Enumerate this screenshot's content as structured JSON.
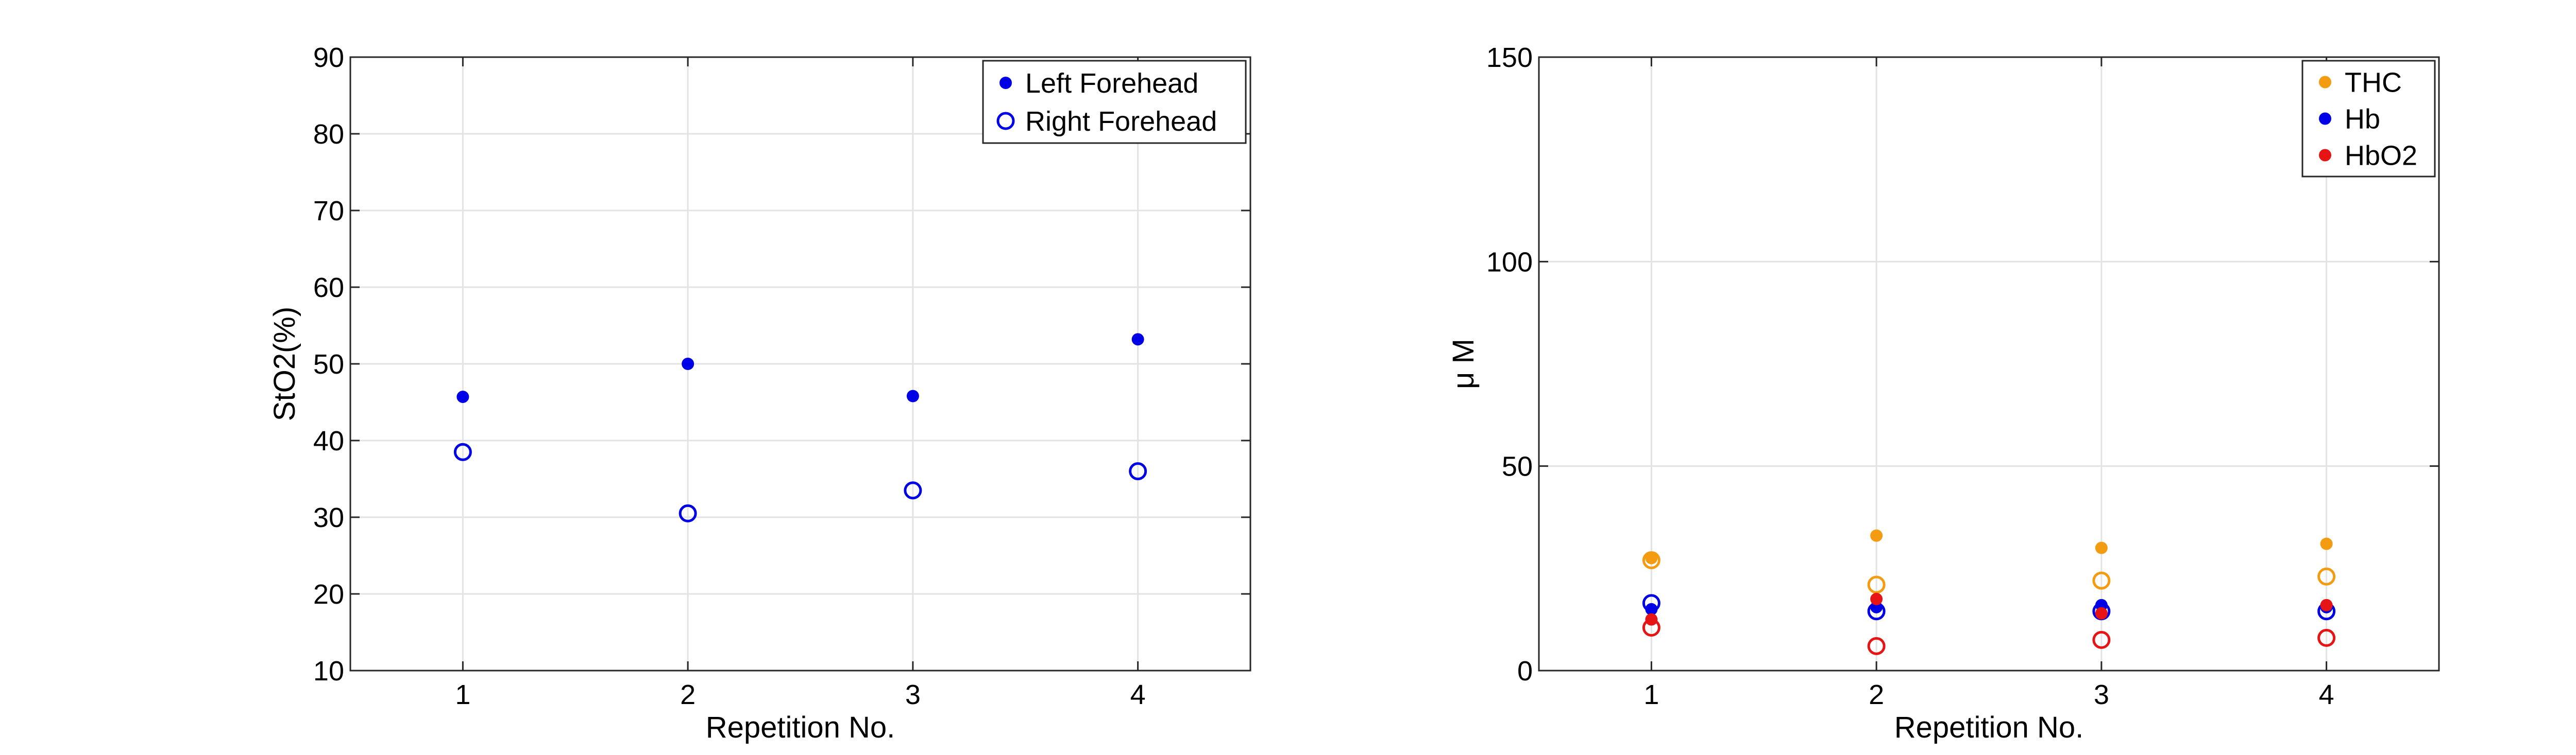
{
  "chart_data": [
    {
      "type": "scatter",
      "xlabel": "Repetition No.",
      "ylabel": "StO2(%)",
      "xlim": [
        0.5,
        4.5
      ],
      "ylim": [
        10,
        90
      ],
      "x_ticks": [
        1,
        2,
        3,
        4
      ],
      "y_ticks": [
        10,
        20,
        30,
        40,
        50,
        60,
        70,
        80,
        90
      ],
      "grid": true,
      "legend_position": "top-right",
      "series": [
        {
          "name": "Left Forehead",
          "marker": "filled",
          "color": "#0000e6",
          "points": [
            {
              "x": 1,
              "y": 45.7
            },
            {
              "x": 2,
              "y": 50.0
            },
            {
              "x": 3,
              "y": 45.8
            },
            {
              "x": 4,
              "y": 53.2
            }
          ]
        },
        {
          "name": "Right Forehead",
          "marker": "open",
          "color": "#0000e6",
          "points": [
            {
              "x": 1,
              "y": 38.5
            },
            {
              "x": 2,
              "y": 30.5
            },
            {
              "x": 3,
              "y": 33.5
            },
            {
              "x": 4,
              "y": 36.0
            }
          ]
        }
      ]
    },
    {
      "type": "scatter",
      "xlabel": "Repetition No.",
      "ylabel": "μ M",
      "xlim": [
        0.5,
        4.5
      ],
      "ylim": [
        0,
        150
      ],
      "x_ticks": [
        1,
        2,
        3,
        4
      ],
      "y_ticks": [
        0,
        50,
        100,
        150
      ],
      "grid": true,
      "legend_position": "top-right",
      "legend": [
        {
          "name": "THC",
          "color": "#f39c12"
        },
        {
          "name": "Hb",
          "color": "#0000e6"
        },
        {
          "name": "HbO2",
          "color": "#e61414"
        }
      ],
      "series": [
        {
          "color": "#f39c12",
          "marker": "filled",
          "points": [
            {
              "x": 1,
              "y": 27.5
            },
            {
              "x": 2,
              "y": 33.0
            },
            {
              "x": 3,
              "y": 30.0
            },
            {
              "x": 4,
              "y": 31.0
            }
          ]
        },
        {
          "color": "#f39c12",
          "marker": "open",
          "points": [
            {
              "x": 1,
              "y": 27.0
            },
            {
              "x": 2,
              "y": 21.0
            },
            {
              "x": 3,
              "y": 22.0
            },
            {
              "x": 4,
              "y": 23.0
            }
          ]
        },
        {
          "color": "#0000e6",
          "marker": "filled",
          "points": [
            {
              "x": 1,
              "y": 15.0
            },
            {
              "x": 2,
              "y": 15.5
            },
            {
              "x": 3,
              "y": 16.0
            },
            {
              "x": 4,
              "y": 15.5
            }
          ]
        },
        {
          "color": "#0000e6",
          "marker": "open",
          "points": [
            {
              "x": 1,
              "y": 16.5
            },
            {
              "x": 2,
              "y": 14.5
            },
            {
              "x": 3,
              "y": 14.5
            },
            {
              "x": 4,
              "y": 14.5
            }
          ]
        },
        {
          "color": "#e61414",
          "marker": "filled",
          "points": [
            {
              "x": 1,
              "y": 12.5
            },
            {
              "x": 2,
              "y": 17.5
            },
            {
              "x": 3,
              "y": 14.0
            },
            {
              "x": 4,
              "y": 16.0
            }
          ]
        },
        {
          "color": "#e61414",
          "marker": "open",
          "points": [
            {
              "x": 1,
              "y": 10.5
            },
            {
              "x": 2,
              "y": 6.0
            },
            {
              "x": 3,
              "y": 7.5
            },
            {
              "x": 4,
              "y": 8.0
            }
          ]
        }
      ]
    }
  ]
}
